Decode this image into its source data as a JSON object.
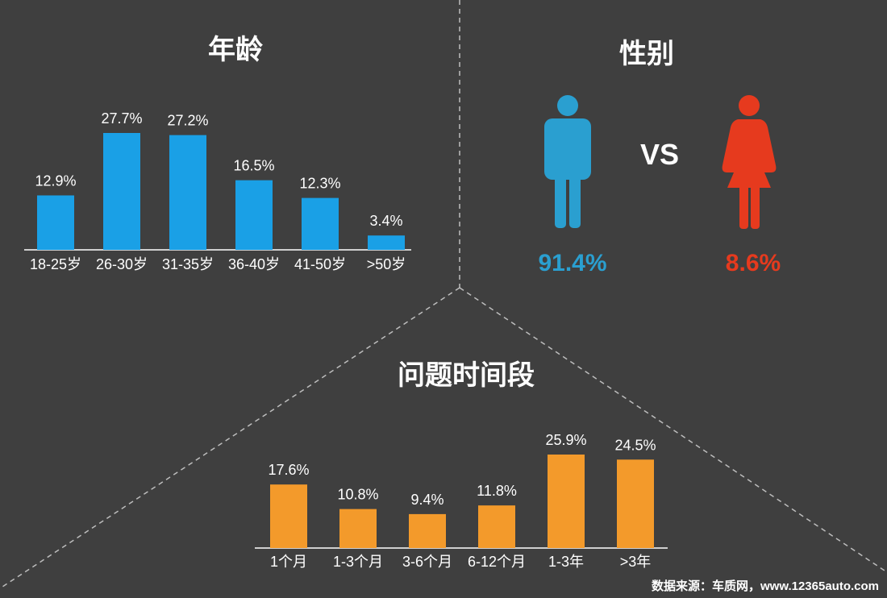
{
  "colors": {
    "background": "#3f3f3f",
    "age_bar": "#1aa0e6",
    "period_bar": "#f39a2b",
    "male": "#2a9fd0",
    "female": "#e63a1e",
    "divider": "#bdbdbd"
  },
  "icons": {
    "male": "male-figure-icon",
    "female": "female-figure-icon"
  },
  "chart_data": [
    {
      "type": "bar",
      "title": "年龄",
      "categories": [
        "18-25岁",
        "26-30岁",
        "31-35岁",
        "36-40岁",
        "41-50岁",
        ">50岁"
      ],
      "values": [
        12.9,
        27.7,
        27.2,
        16.5,
        12.3,
        3.4
      ],
      "value_labels": [
        "12.9%",
        "27.7%",
        "27.2%",
        "16.5%",
        "12.3%",
        "3.4%"
      ],
      "ylim": [
        0,
        27.7
      ],
      "grid": false
    },
    {
      "type": "pie",
      "title": "性别",
      "versus": "VS",
      "categories": [
        "male",
        "female"
      ],
      "values": [
        91.4,
        8.6
      ],
      "value_labels": [
        "91.4%",
        "8.6%"
      ]
    },
    {
      "type": "bar",
      "title": "问题时间段",
      "categories": [
        "1个月",
        "1-3个月",
        "3-6个月",
        "6-12个月",
        "1-3年",
        ">3年"
      ],
      "values": [
        17.6,
        10.8,
        9.4,
        11.8,
        25.9,
        24.5
      ],
      "value_labels": [
        "17.6%",
        "10.8%",
        "9.4%",
        "11.8%",
        "25.9%",
        "24.5%"
      ],
      "ylim": [
        0,
        25.9
      ],
      "grid": false
    }
  ],
  "source_note": "数据来源：车质网，www.12365auto.com"
}
